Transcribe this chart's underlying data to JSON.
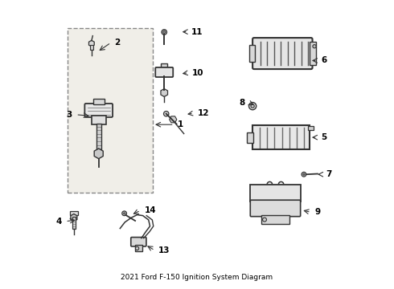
{
  "title": "2021 Ford F-150 Ignition System Diagram",
  "background_color": "#ffffff",
  "border_color": "#cccccc",
  "line_color": "#333333",
  "text_color": "#000000",
  "box_bg": "#f0eee8",
  "box_border": "#888888",
  "fill_light": "#e8e8e8",
  "fill_mid": "#d8d8d8",
  "fill_dark": "#c8c8c8"
}
